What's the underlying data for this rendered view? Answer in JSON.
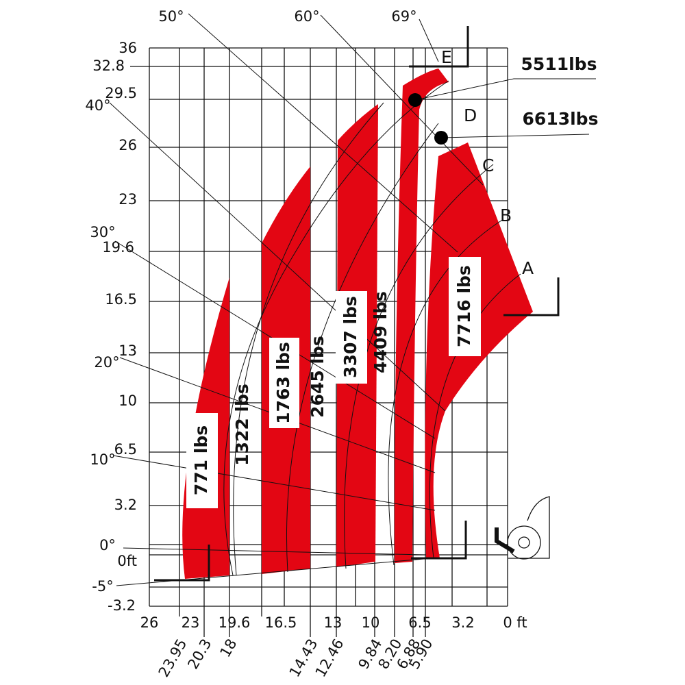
{
  "angle_labels": [
    "50°",
    "60°",
    "69°",
    "40°",
    "30°",
    "20°",
    "10°",
    "0°",
    "-5°"
  ],
  "height_labels": [
    "36",
    "32.8",
    "29.5",
    "26",
    "23",
    "19.6",
    "16.5",
    "13",
    "10",
    "6.5",
    "3.2",
    "0ft",
    "-3.2"
  ],
  "reach_labels": [
    "26",
    "23",
    "19.6",
    "16.5",
    "13",
    "10",
    "6.5",
    "3.2",
    "0 ft"
  ],
  "load_reach_labels": [
    "23.95",
    "20.3",
    "18",
    "14.43",
    "12.46",
    "9.84",
    "8.20",
    "6.88",
    "5.90"
  ],
  "loads": [
    "771 lbs",
    "1322 lbs",
    "1763 lbs",
    "2645 lbs",
    "3307 lbs",
    "4409 lbs",
    "7716 lbs",
    "5511lbs",
    "6613lbs"
  ],
  "boom_positions": [
    "E",
    "D",
    "C",
    "B",
    "A"
  ]
}
